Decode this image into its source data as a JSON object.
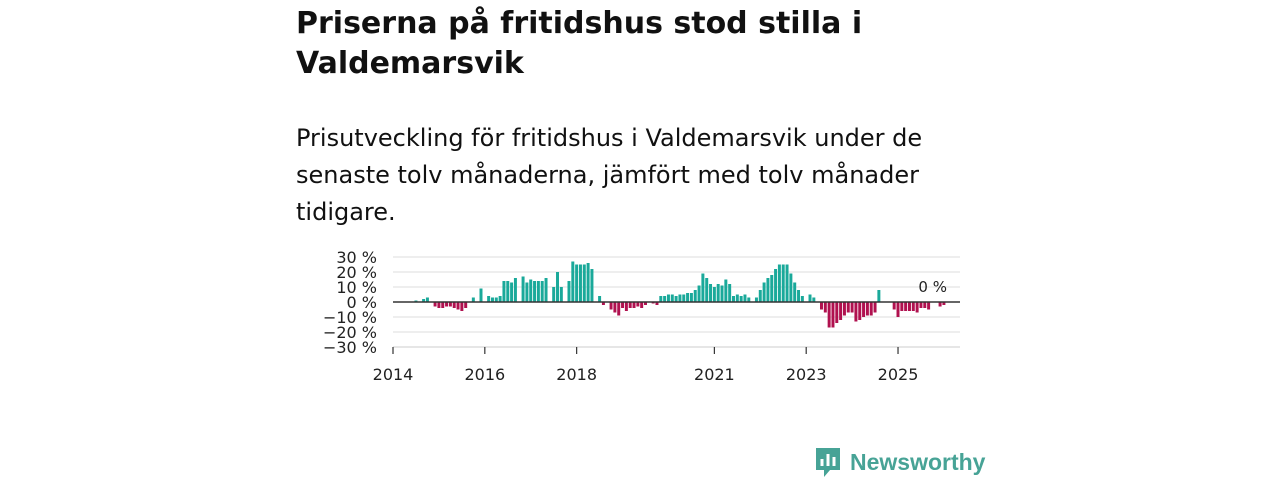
{
  "header": {
    "title": "Priserna på fritidshus stod stilla i Valdemarsvik",
    "subtitle": "Prisutveckling för fritidshus i Valdemarsvik under de senaste tolv månaderna, jämfört med tolv månader tidigare."
  },
  "brand": {
    "name": "Newsworthy"
  },
  "colors": {
    "positive": "#1aa99a",
    "negative": "#b0114f",
    "grid": "#dddddd",
    "zero": "#333333",
    "brand": "#47a396"
  },
  "chart_data": {
    "type": "bar",
    "title": "Priserna på fritidshus stod stilla i Valdemarsvik",
    "xlabel": "",
    "ylabel": "",
    "ylim": [
      -30,
      30
    ],
    "yticks": [
      30,
      20,
      10,
      0,
      -10,
      -20,
      -30
    ],
    "ytick_labels": [
      "30 %",
      "20 %",
      "10 %",
      "0 %",
      "−10 %",
      "−20 %",
      "−30 %"
    ],
    "xlim": [
      2014,
      2026.35
    ],
    "xticks": [
      2014,
      2016,
      2018,
      2021,
      2023,
      2025
    ],
    "xtick_labels": [
      "2014",
      "2016",
      "2018",
      "2021",
      "2023",
      "2025"
    ],
    "grid": true,
    "end_label": "0 %",
    "end_value": 0,
    "series": [
      {
        "name": "Prisutveckling",
        "start": 2014.5,
        "step": 0.08333,
        "values": [
          1,
          0,
          2,
          3,
          null,
          -3,
          -4,
          -4,
          -3,
          -3,
          -4,
          -5,
          -6,
          -4,
          null,
          3,
          null,
          9,
          null,
          4,
          3,
          3,
          4,
          14,
          14,
          13,
          16,
          null,
          17,
          13,
          15,
          14,
          14,
          14,
          16,
          null,
          10,
          20,
          10,
          null,
          14,
          27,
          25,
          25,
          25,
          26,
          22,
          null,
          4,
          -2,
          null,
          -5,
          -7,
          -9,
          -4,
          -6,
          -4,
          -4,
          -3,
          -4,
          -2,
          null,
          -1,
          -2,
          4,
          4,
          5,
          5,
          4,
          5,
          5,
          6,
          6,
          8,
          11,
          19,
          16,
          12,
          10,
          12,
          11,
          15,
          12,
          4,
          5,
          4,
          5,
          3,
          null,
          3,
          8,
          13,
          16,
          18,
          22,
          25,
          25,
          25,
          19,
          13,
          8,
          4,
          null,
          5,
          3,
          null,
          -5,
          -7,
          -17,
          -17,
          -14,
          -12,
          -9,
          -7,
          -7,
          -13,
          -12,
          -10,
          -9,
          -9,
          -7,
          8,
          null,
          null,
          null,
          -5,
          -10,
          -6,
          -6,
          -6,
          -6,
          -7,
          -4,
          -4,
          -5,
          null,
          null,
          -3,
          -2,
          0
        ]
      }
    ]
  }
}
